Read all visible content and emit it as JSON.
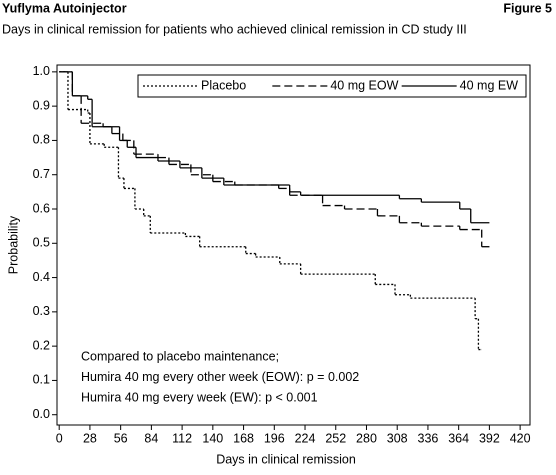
{
  "chart_data": {
    "type": "step",
    "title": "Yuflyma Autoinjector",
    "figure_label": "Figure 5",
    "subtitle": "Days in clinical remission for patients who achieved clinical remission in CD study III",
    "x_label": "Days in clinical remission",
    "y_label": "Probability",
    "xlim": [
      -2,
      429
    ],
    "ylim": [
      -0.03,
      1.02
    ],
    "xticks": [
      0,
      28,
      56,
      84,
      112,
      140,
      168,
      196,
      224,
      252,
      280,
      308,
      336,
      364,
      392,
      420
    ],
    "yticks": [
      {
        "value": 0,
        "label": "0.0"
      },
      0.1,
      0.2,
      0.3,
      0.4,
      0.5,
      0.6,
      0.7,
      0.8,
      0.9,
      {
        "value": 1,
        "label": "1.0"
      }
    ],
    "legend": "upper right",
    "series": [
      {
        "name": "Placebo",
        "color": "#000000",
        "line_style": "dotted",
        "x": [
          0,
          8,
          26,
          28,
          41,
          54,
          59,
          69,
          77,
          83,
          115,
          128,
          170,
          179,
          201,
          220,
          288,
          306,
          320,
          379,
          382,
          385
        ],
        "values": [
          1.0,
          0.89,
          0.88,
          0.79,
          0.78,
          0.69,
          0.66,
          0.6,
          0.58,
          0.53,
          0.52,
          0.49,
          0.47,
          0.46,
          0.44,
          0.41,
          0.38,
          0.35,
          0.34,
          0.28,
          0.19,
          0.19
        ]
      },
      {
        "name": "40 mg EOW",
        "color": "#000000",
        "line_style": "dashed",
        "x": [
          0,
          12,
          20,
          40,
          48,
          58,
          68,
          90,
          100,
          120,
          140,
          160,
          200,
          210,
          240,
          260,
          290,
          310,
          330,
          365,
          385,
          392
        ],
        "values": [
          1.0,
          0.93,
          0.85,
          0.84,
          0.82,
          0.8,
          0.76,
          0.75,
          0.73,
          0.7,
          0.68,
          0.67,
          0.66,
          0.64,
          0.61,
          0.6,
          0.58,
          0.56,
          0.55,
          0.54,
          0.49,
          0.49
        ]
      },
      {
        "name": "40 mg EW",
        "color": "#000000",
        "line_style": "solid",
        "x": [
          0,
          12,
          26,
          30,
          55,
          62,
          70,
          90,
          110,
          130,
          150,
          210,
          220,
          310,
          330,
          365,
          375,
          392
        ],
        "values": [
          1.0,
          0.93,
          0.92,
          0.84,
          0.8,
          0.78,
          0.75,
          0.74,
          0.72,
          0.69,
          0.67,
          0.65,
          0.64,
          0.63,
          0.62,
          0.6,
          0.56,
          0.56
        ]
      }
    ],
    "annotations": [
      "Compared to placebo maintenance;",
      "Humira 40 mg every other week (EOW): p = 0.002",
      "Humira 40 mg every week (EW): p < 0.001"
    ]
  }
}
